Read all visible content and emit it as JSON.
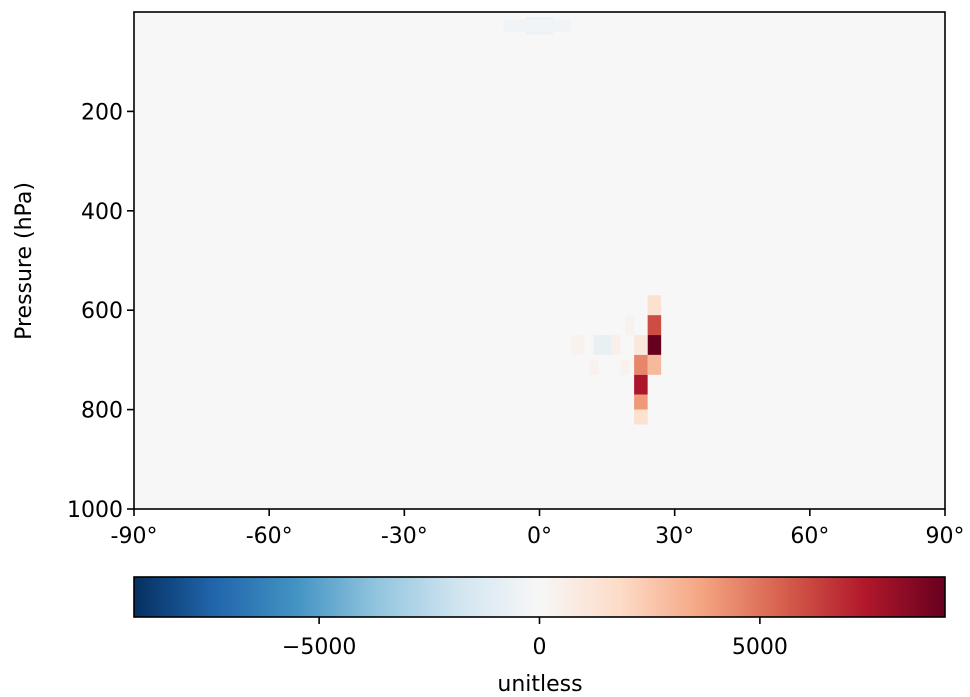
{
  "chart_data": {
    "type": "heatmap",
    "title": "",
    "xlabel": "",
    "ylabel": "Pressure (hPa)",
    "xlim": [
      -90,
      90
    ],
    "ylim": [
      1000,
      0
    ],
    "x_ticks": [
      -90,
      -60,
      -30,
      0,
      30,
      60,
      90
    ],
    "x_tick_labels": [
      "-90°",
      "-60°",
      "-30°",
      "0°",
      "30°",
      "60°",
      "90°"
    ],
    "y_ticks": [
      200,
      400,
      600,
      800,
      1000
    ],
    "y_tick_labels": [
      "200",
      "400",
      "600",
      "800",
      "1000"
    ],
    "colormap": "RdBu_r",
    "colorbar": {
      "label": "unitless",
      "range": [
        -9200,
        9200
      ],
      "ticks": [
        -5000,
        0,
        5000
      ],
      "tick_labels": [
        "−5000",
        "0",
        "5000"
      ],
      "colors": [
        "#053061",
        "#2166ac",
        "#4393c3",
        "#92c5de",
        "#d1e5f0",
        "#f7f7f7",
        "#fddbc7",
        "#f4a582",
        "#d6604d",
        "#b2182b",
        "#67001f"
      ]
    },
    "background_value": 0,
    "cells": [
      {
        "lat": [
          -3,
          3
        ],
        "p": [
          10,
          45
        ],
        "value": -600
      },
      {
        "lat": [
          -8,
          7
        ],
        "p": [
          15,
          40
        ],
        "value": -300
      },
      {
        "lat": [
          12,
          17
        ],
        "p": [
          650,
          690
        ],
        "value": -700
      },
      {
        "lat": [
          7,
          10
        ],
        "p": [
          650,
          690
        ],
        "value": 300
      },
      {
        "lat": [
          11,
          13
        ],
        "p": [
          700,
          730
        ],
        "value": 400
      },
      {
        "lat": [
          16,
          18
        ],
        "p": [
          650,
          690
        ],
        "value": 500
      },
      {
        "lat": [
          18,
          20
        ],
        "p": [
          700,
          730
        ],
        "value": 400
      },
      {
        "lat": [
          19,
          21
        ],
        "p": [
          610,
          650
        ],
        "value": 300
      },
      {
        "lat": [
          24,
          27
        ],
        "p": [
          570,
          610
        ],
        "value": 1500
      },
      {
        "lat": [
          24,
          27
        ],
        "p": [
          610,
          650
        ],
        "value": 6000
      },
      {
        "lat": [
          24,
          27
        ],
        "p": [
          650,
          690
        ],
        "value": 9200
      },
      {
        "lat": [
          24,
          27
        ],
        "p": [
          690,
          730
        ],
        "value": 3000
      },
      {
        "lat": [
          21,
          24
        ],
        "p": [
          650,
          690
        ],
        "value": 1000
      },
      {
        "lat": [
          21,
          24
        ],
        "p": [
          690,
          730
        ],
        "value": 4500
      },
      {
        "lat": [
          21,
          24
        ],
        "p": [
          730,
          770
        ],
        "value": 7500
      },
      {
        "lat": [
          21,
          24
        ],
        "p": [
          770,
          800
        ],
        "value": 4000
      },
      {
        "lat": [
          21,
          24
        ],
        "p": [
          800,
          830
        ],
        "value": 1500
      }
    ]
  }
}
